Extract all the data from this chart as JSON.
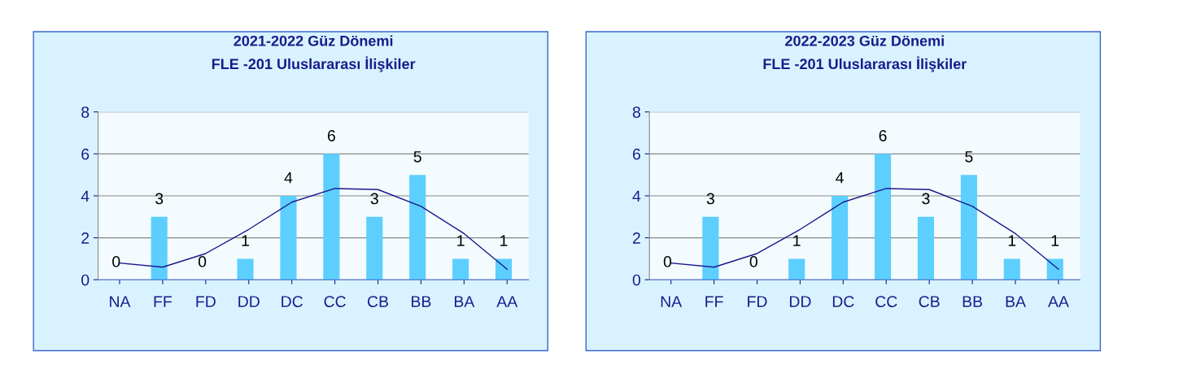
{
  "chart_data": [
    {
      "type": "bar",
      "title": "2021-2022 Güz Dönemi\nFLE -201 Uluslararası İlişkiler",
      "categories": [
        "NA",
        "FF",
        "FD",
        "DD",
        "DC",
        "CC",
        "CB",
        "BB",
        "BA",
        "AA"
      ],
      "series": [
        {
          "color": "#5ccfff",
          "values": [
            0,
            3,
            0,
            1,
            4,
            6,
            3,
            5,
            1,
            1
          ],
          "value_labels": [
            "0",
            "3",
            "0",
            "1",
            "4",
            "6",
            "3",
            "5",
            "1",
            "1"
          ]
        },
        {
          "type": "line",
          "color": "#1a1a8c",
          "values": [
            0.8,
            0.6,
            1.25,
            2.4,
            3.7,
            4.35,
            4.3,
            3.5,
            2.2,
            0.5
          ]
        }
      ],
      "ylim": [
        0,
        8
      ],
      "yticks": [
        0,
        2,
        4,
        6,
        8
      ],
      "grid": "y"
    },
    {
      "type": "bar",
      "title": "2022-2023 Güz Dönemi\nFLE -201 Uluslararası İlişkiler",
      "categories": [
        "NA",
        "FF",
        "FD",
        "DD",
        "DC",
        "CC",
        "CB",
        "BB",
        "BA",
        "AA"
      ],
      "series": [
        {
          "color": "#5ccfff",
          "values": [
            0,
            3,
            0,
            1,
            4,
            6,
            3,
            5,
            1,
            1
          ],
          "value_labels": [
            "0",
            "3",
            "0",
            "1",
            "4",
            "6",
            "3",
            "5",
            "1",
            "1"
          ]
        },
        {
          "type": "line",
          "color": "#1a1a8c",
          "values": [
            0.8,
            0.6,
            1.25,
            2.4,
            3.7,
            4.35,
            4.3,
            3.5,
            2.2,
            0.5
          ]
        }
      ],
      "ylim": [
        0,
        8
      ],
      "yticks": [
        0,
        2,
        4,
        6,
        8
      ],
      "grid": "y"
    }
  ]
}
